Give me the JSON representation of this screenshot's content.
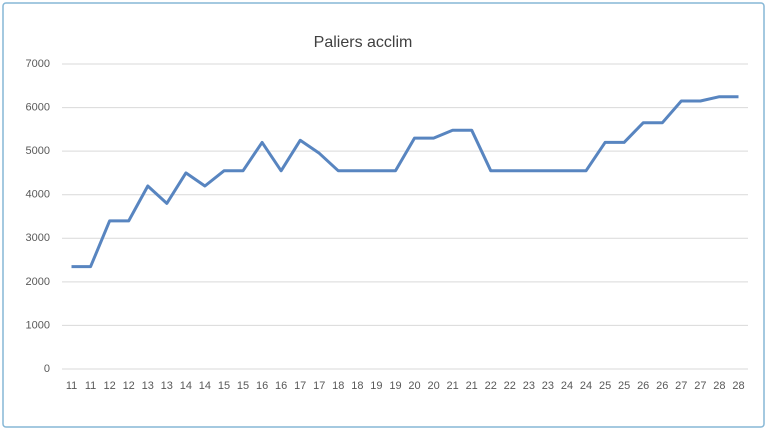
{
  "chart_data": {
    "type": "line",
    "title": "Paliers acclim",
    "categories": [
      "11",
      "11",
      "12",
      "12",
      "13",
      "13",
      "14",
      "14",
      "15",
      "15",
      "16",
      "16",
      "17",
      "17",
      "18",
      "18",
      "19",
      "19",
      "20",
      "20",
      "21",
      "21",
      "22",
      "22",
      "23",
      "23",
      "24",
      "24",
      "25",
      "25",
      "26",
      "26",
      "27",
      "27",
      "28",
      "28"
    ],
    "values": [
      2350,
      2350,
      3400,
      3400,
      4200,
      3800,
      4500,
      4200,
      4550,
      4550,
      5200,
      4550,
      5250,
      4950,
      4550,
      4550,
      4550,
      4550,
      5300,
      5300,
      5480,
      5480,
      4550,
      4550,
      4550,
      4550,
      4550,
      4550,
      5200,
      5200,
      5650,
      5650,
      6150,
      6150,
      6250,
      6250
    ],
    "color": "#5885c0",
    "ylim": [
      0,
      7000
    ],
    "yticks": [
      0,
      1000,
      2000,
      3000,
      4000,
      5000,
      6000,
      7000
    ],
    "grid": true
  }
}
